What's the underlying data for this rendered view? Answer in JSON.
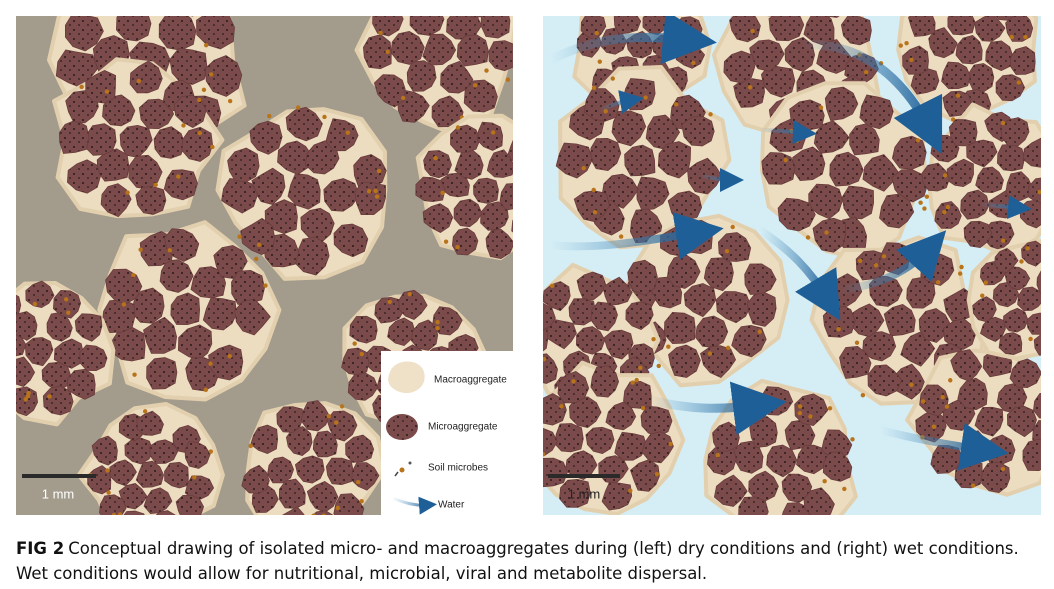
{
  "left_panel": {
    "scale_bar": "1 mm",
    "legend": [
      "Macroaggregate",
      "Microaggregate",
      "Soil microbes",
      "Water"
    ]
  },
  "right_panel": {
    "scale_bar": "1 mm"
  },
  "caption": {
    "label": "FIG 2",
    "text": "Conceptual drawing of isolated micro- and macroaggregates during (left) dry conditions and (right) wet conditions. Wet conditions would allow for nutritional, microbial, viral and metabolite dispersal."
  }
}
